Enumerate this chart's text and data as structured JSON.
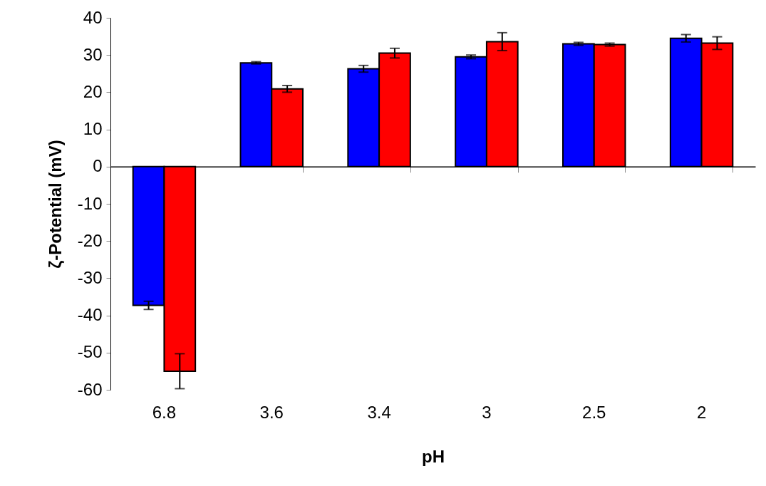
{
  "chart_data": {
    "type": "bar",
    "xlabel": "pH",
    "ylabel": "ζ-Potential (mV)",
    "categories": [
      "6.8",
      "3.6",
      "3.4",
      "3",
      "2.5",
      "2"
    ],
    "series": [
      {
        "color": "#0000ff",
        "values": [
          -37.3,
          27.9,
          26.3,
          29.5,
          33.0,
          34.5
        ],
        "errors": [
          1.1,
          0.3,
          0.9,
          0.5,
          0.4,
          1.0
        ]
      },
      {
        "color": "#ff0000",
        "values": [
          -55.0,
          20.9,
          30.5,
          33.6,
          32.8,
          33.2
        ],
        "errors": [
          4.7,
          0.9,
          1.3,
          2.4,
          0.4,
          1.7
        ]
      }
    ],
    "ylim": [
      -60,
      40
    ],
    "yticks": [
      -60,
      -50,
      -40,
      -30,
      -20,
      -10,
      0,
      10,
      20,
      30,
      40
    ],
    "legend": false
  }
}
